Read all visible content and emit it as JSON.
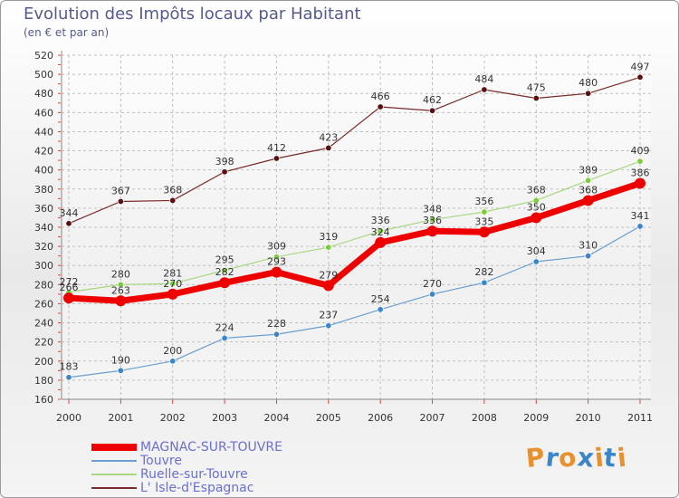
{
  "chart_data": {
    "type": "line",
    "title": "Evolution des Impôts locaux par Habitant",
    "subtitle": "(en € et par an)",
    "xlabel": "",
    "ylabel": "",
    "categories": [
      "2000",
      "2001",
      "2002",
      "2003",
      "2004",
      "2005",
      "2006",
      "2007",
      "2008",
      "2009",
      "2010",
      "2011"
    ],
    "ylim": [
      160,
      520
    ],
    "yticks": [
      160,
      180,
      200,
      220,
      240,
      260,
      280,
      300,
      320,
      340,
      360,
      380,
      400,
      420,
      440,
      460,
      480,
      500,
      520
    ],
    "grid": true,
    "series": [
      {
        "name": "L' Isle-d'Espagnac",
        "color": "#7a2a2a",
        "point_color": "#5a1010",
        "values": [
          344,
          367,
          368,
          398,
          412,
          423,
          466,
          462,
          484,
          475,
          480,
          497
        ]
      },
      {
        "name": "Ruelle-sur-Touvre",
        "color": "#a8d880",
        "point_color": "#7ccc3c",
        "values": [
          272,
          280,
          281,
          295,
          309,
          319,
          336,
          348,
          356,
          368,
          389,
          409
        ]
      },
      {
        "name": "Touvre",
        "color": "#6a9fcf",
        "point_color": "#3a86c8",
        "values": [
          183,
          190,
          200,
          224,
          228,
          237,
          254,
          270,
          282,
          304,
          310,
          341
        ]
      },
      {
        "name": "MAGNAC-SUR-TOUVRE",
        "color": "#ee0000",
        "point_color": "#ee0000",
        "values": [
          266,
          263,
          270,
          282,
          293,
          279,
          324,
          336,
          335,
          350,
          368,
          386
        ]
      }
    ],
    "legend_order": [
      "MAGNAC-SUR-TOUVRE",
      "Touvre",
      "Ruelle-sur-Touvre",
      "L' Isle-d'Espagnac"
    ],
    "legend_position": "bottom-left"
  },
  "logo": {
    "text": "Proxiti",
    "colors": [
      "#e8912c",
      "#3a86c8",
      "#e8912c",
      "#3a86c8",
      "#e8912c",
      "#3a86c8",
      "#e8912c"
    ]
  }
}
